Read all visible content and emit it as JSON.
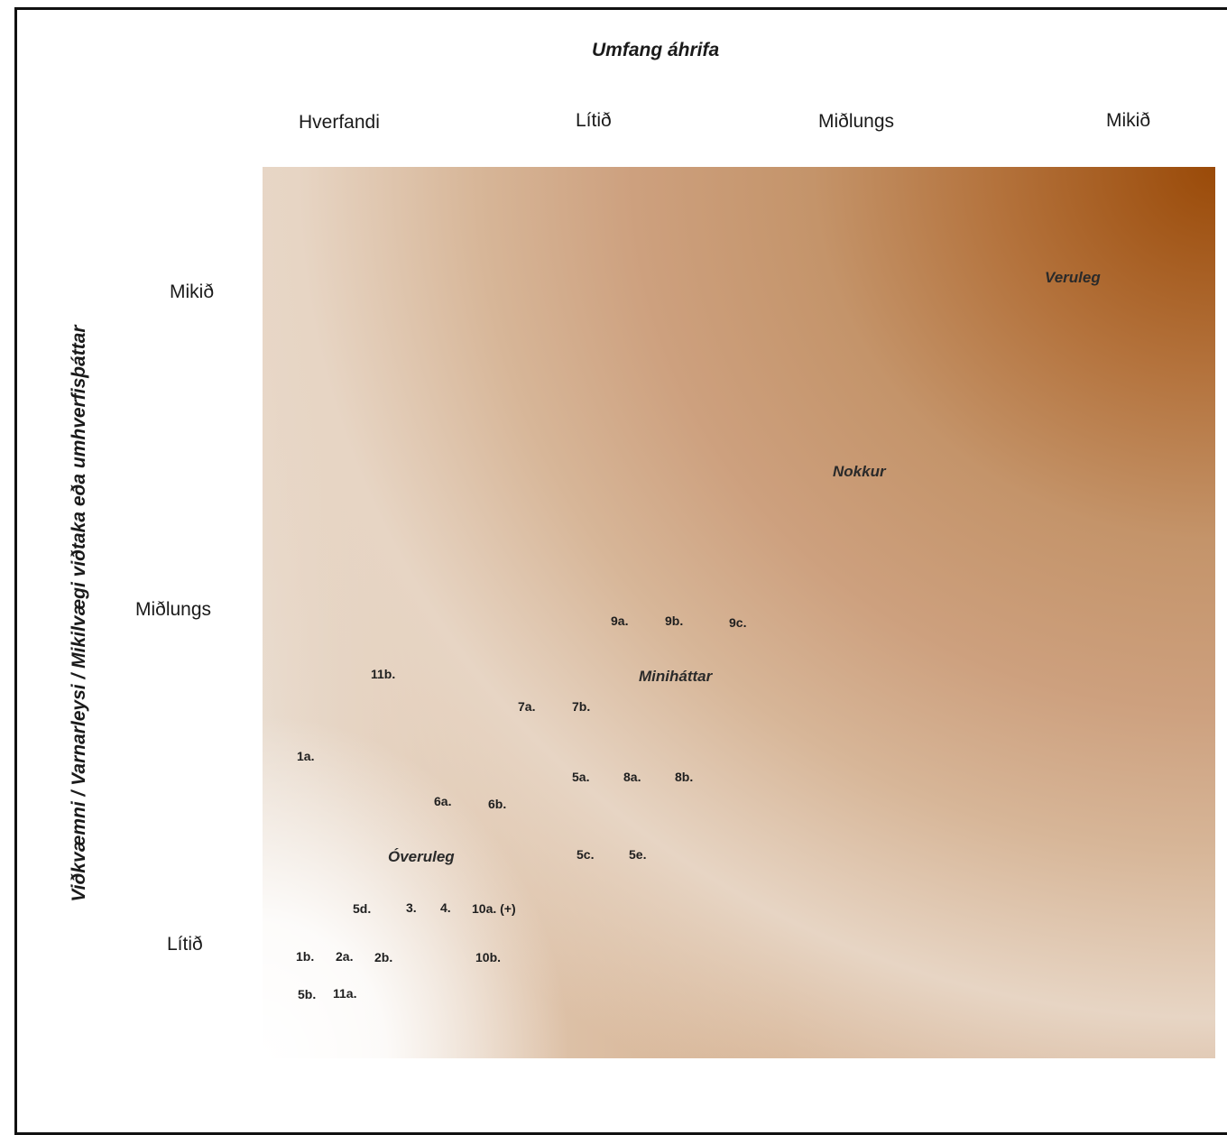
{
  "x_axis": {
    "title": "Umfang áhrifa",
    "labels": [
      "Hverfandi",
      "Lítið",
      "Miðlungs",
      "Mikið"
    ]
  },
  "y_axis": {
    "title": "Viðkvæmni / Varnarleysi / Mikilvægi viðtaka  eða umhverfisþáttar",
    "labels": [
      "Mikið",
      "Miðlungs",
      "Lítið"
    ]
  },
  "zones": [
    "Veruleg",
    "Nokkur",
    "Miniháttar",
    "Óveruleg"
  ],
  "points": [
    "9a.",
    "9b.",
    "9c.",
    "11b.",
    "7a.",
    "7b.",
    "1a.",
    "5a.",
    "8a.",
    "8b.",
    "6a.",
    "6b.",
    "5c.",
    "5e.",
    "5d.",
    "3.",
    "4.",
    "10a. (+)",
    "1b.",
    "2a.",
    "2b.",
    "10b.",
    "5b.",
    "11a."
  ],
  "colors": {
    "dark_corner": "#9a4a08",
    "mid_tone": "#cda07e",
    "light_tone": "#e9dccf",
    "frame": "#111111"
  }
}
